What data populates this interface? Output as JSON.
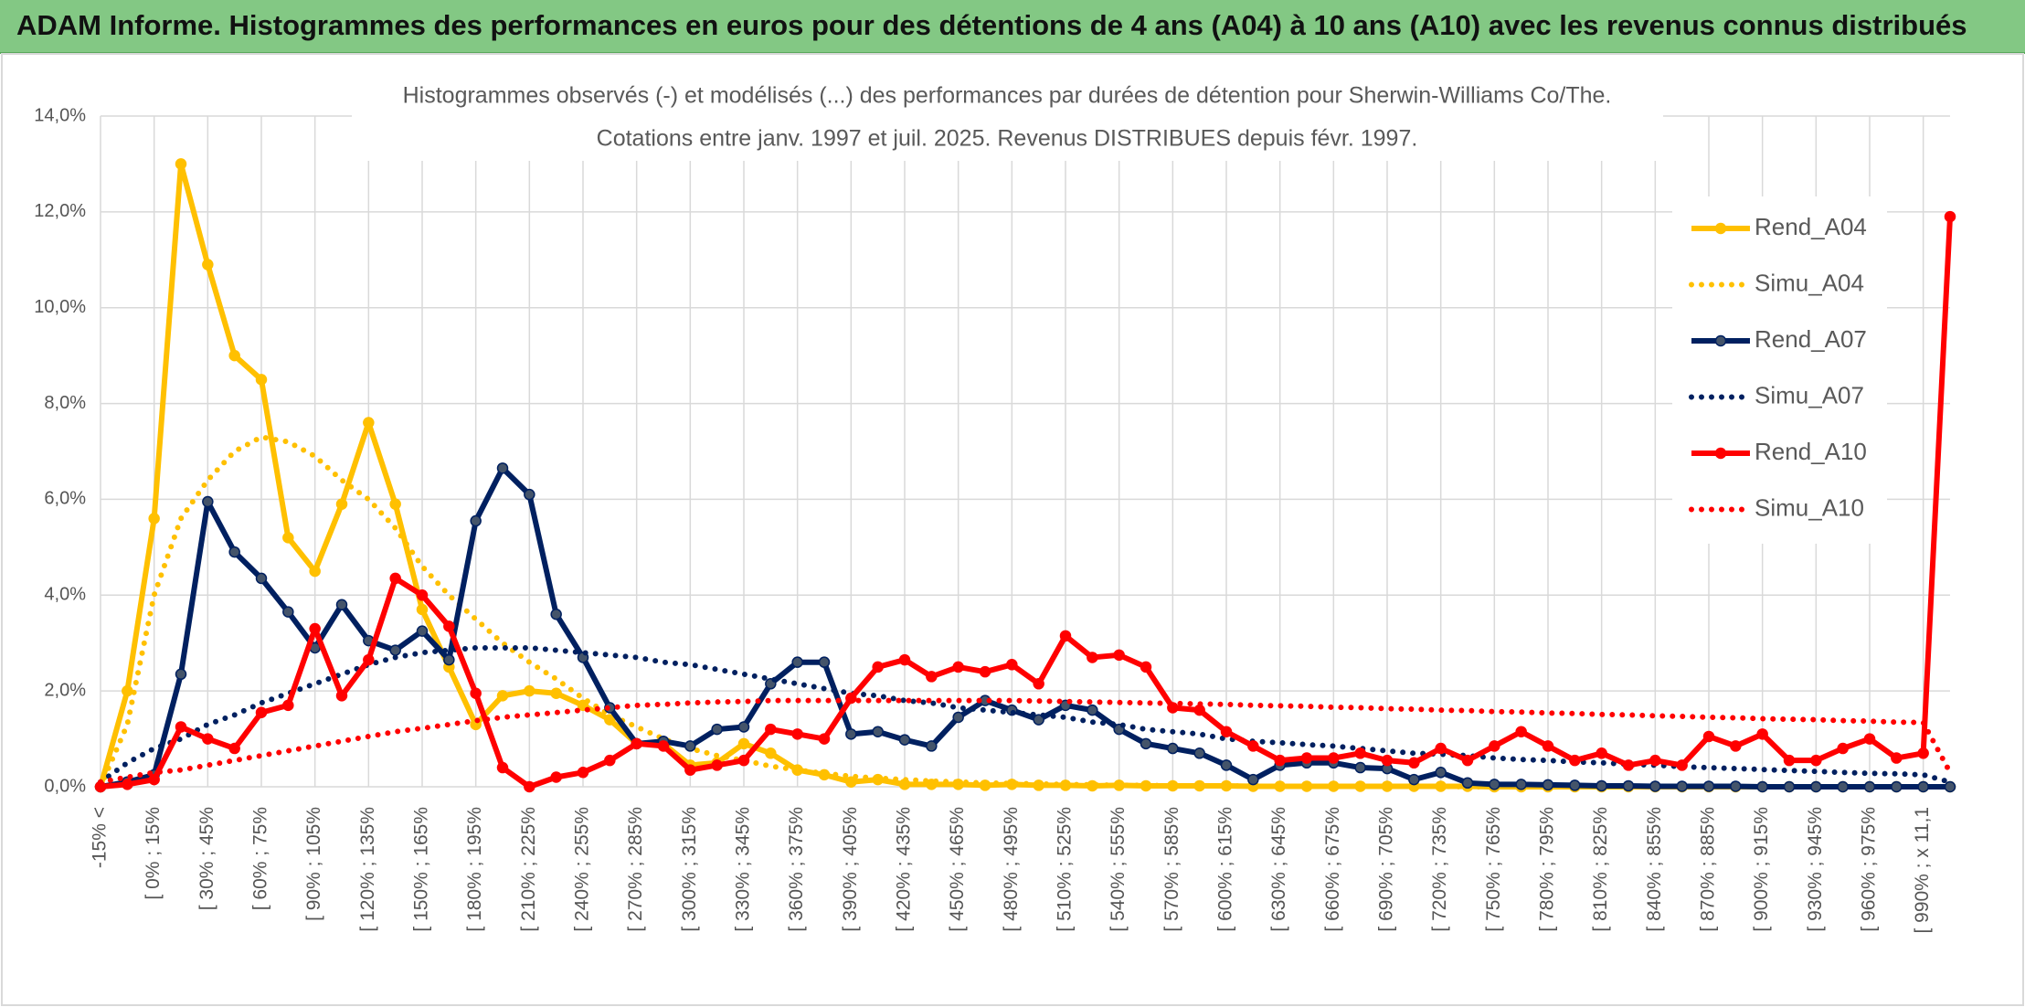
{
  "header": {
    "title": "ADAM Informe. Histogrammes des performances en euros pour des détentions de 4 ans (A04) à 10 ans (A10) avec les revenus connus distribués"
  },
  "chart_data": {
    "type": "line",
    "title": "Histogrammes observés (-) et modélisés (...) des performances par durées de détention pour Sherwin-Williams Co/The.",
    "subtitle": "Cotations entre janv. 1997 et juil. 2025. Revenus DISTRIBUES depuis févr. 1997.",
    "categories": [
      "-15% <",
      null,
      "[ 0% ; 15%",
      null,
      "[ 30% ; 45%",
      null,
      "[ 60% ; 75%",
      null,
      "[ 90% ; 105%",
      null,
      "[ 120% ; 135%",
      null,
      "[ 150% ; 165%",
      null,
      "[ 180% ; 195%",
      null,
      "[ 210% ; 225%",
      null,
      "[ 240% ; 255%",
      null,
      "[ 270% ; 285%",
      null,
      "[ 300% ; 315%",
      null,
      "[ 330% ; 345%",
      null,
      "[ 360% ; 375%",
      null,
      "[ 390% ; 405%",
      null,
      "[ 420% ; 435%",
      null,
      "[ 450% ; 465%",
      null,
      "[ 480% ; 495%",
      null,
      "[ 510% ; 525%",
      null,
      "[ 540% ; 555%",
      null,
      "[ 570% ; 585%",
      null,
      "[ 600% ; 615%",
      null,
      "[ 630% ; 645%",
      null,
      "[ 660% ; 675%",
      null,
      "[ 690% ; 705%",
      null,
      "[ 720% ; 735%",
      null,
      "[ 750% ; 765%",
      null,
      "[ 780% ; 795%",
      null,
      "[ 810% ; 825%",
      null,
      "[ 840% ; 855%",
      null,
      "[ 870% ; 885%",
      null,
      "[ 900% ; 915%",
      null,
      "[ 930% ; 945%",
      null,
      "[ 960% ; 975%",
      null,
      "[ 990% ; x 11,1",
      null
    ],
    "ylim": [
      0,
      14
    ],
    "yticks": [
      {
        "value": 0,
        "label": "0,0%"
      },
      {
        "value": 2,
        "label": "2,0%"
      },
      {
        "value": 4,
        "label": "4,0%"
      },
      {
        "value": 6,
        "label": "6,0%"
      },
      {
        "value": 8,
        "label": "8,0%"
      },
      {
        "value": 10,
        "label": "10,0%"
      },
      {
        "value": 12,
        "label": "12,0%"
      },
      {
        "value": 14,
        "label": "14,0%"
      }
    ],
    "grid": true,
    "legend": "right",
    "series": [
      {
        "name": "Rend_A04",
        "color": "#ffc000",
        "style": "solid",
        "marker_color": "#ffc000",
        "values": [
          0,
          2.0,
          5.6,
          13.0,
          10.9,
          9.0,
          8.5,
          5.2,
          4.5,
          5.9,
          7.6,
          5.9,
          3.7,
          2.5,
          1.3,
          1.9,
          2.0,
          1.95,
          1.7,
          1.4,
          0.9,
          0.9,
          0.45,
          0.5,
          0.9,
          0.7,
          0.35,
          0.25,
          0.1,
          0.15,
          0.05,
          0.05,
          0.05,
          0.03,
          0.05,
          0.03,
          0.03,
          0.02,
          0.03,
          0.02,
          0.02,
          0.02,
          0.02,
          0.01,
          0.01,
          0.01,
          0.01,
          0.01,
          0.01,
          0.01,
          0.01,
          0.01,
          0,
          0,
          0,
          0,
          0,
          0,
          0,
          0,
          0,
          0,
          0,
          0,
          0,
          0,
          0,
          0,
          0,
          0
        ]
      },
      {
        "name": "Simu_A04",
        "color": "#ffc000",
        "style": "dotted",
        "values": [
          0,
          1.3,
          4.0,
          5.6,
          6.4,
          7.0,
          7.3,
          7.2,
          6.9,
          6.4,
          6.0,
          5.4,
          4.6,
          4.0,
          3.5,
          3.0,
          2.6,
          2.25,
          1.85,
          1.5,
          1.25,
          1.0,
          0.8,
          0.65,
          0.55,
          0.43,
          0.35,
          0.28,
          0.22,
          0.18,
          0.15,
          0.12,
          0.1,
          0.08,
          0.07,
          0.06,
          0.05,
          0.04,
          0.03,
          0.03,
          0.02,
          0.02,
          0.02,
          0.01,
          0.01,
          0.01,
          0.01,
          0.01,
          0.01,
          0.01,
          0.01,
          0,
          0,
          0,
          0,
          0,
          0,
          0,
          0,
          0,
          0,
          0,
          0,
          0,
          0,
          0,
          0,
          0,
          0,
          0
        ]
      },
      {
        "name": "Rend_A07",
        "color": "#002060",
        "style": "solid",
        "marker_color": "#44546a",
        "values": [
          0,
          0.1,
          0.25,
          2.35,
          5.95,
          4.9,
          4.35,
          3.65,
          2.9,
          3.8,
          3.05,
          2.85,
          3.25,
          2.65,
          5.55,
          6.65,
          6.1,
          3.6,
          2.7,
          1.65,
          0.9,
          0.95,
          0.85,
          1.2,
          1.25,
          2.15,
          2.6,
          2.6,
          1.1,
          1.15,
          0.98,
          0.85,
          1.45,
          1.8,
          1.6,
          1.4,
          1.7,
          1.6,
          1.2,
          0.9,
          0.8,
          0.7,
          0.45,
          0.15,
          0.45,
          0.5,
          0.5,
          0.4,
          0.38,
          0.15,
          0.3,
          0.08,
          0.05,
          0.05,
          0.04,
          0.03,
          0.02,
          0.02,
          0.01,
          0.01,
          0.01,
          0.01,
          0,
          0,
          0,
          0,
          0,
          0,
          0,
          0
        ]
      },
      {
        "name": "Simu_A07",
        "color": "#002060",
        "style": "dotted",
        "values": [
          0.1,
          0.5,
          0.8,
          1.0,
          1.3,
          1.5,
          1.75,
          1.95,
          2.15,
          2.35,
          2.55,
          2.7,
          2.8,
          2.85,
          2.9,
          2.9,
          2.9,
          2.85,
          2.8,
          2.75,
          2.7,
          2.6,
          2.55,
          2.45,
          2.35,
          2.25,
          2.15,
          2.05,
          1.95,
          1.9,
          1.8,
          1.75,
          1.65,
          1.6,
          1.55,
          1.5,
          1.45,
          1.35,
          1.3,
          1.2,
          1.15,
          1.1,
          1.0,
          0.95,
          0.92,
          0.88,
          0.85,
          0.8,
          0.75,
          0.7,
          0.68,
          0.65,
          0.6,
          0.57,
          0.55,
          0.52,
          0.5,
          0.47,
          0.45,
          0.42,
          0.4,
          0.38,
          0.36,
          0.34,
          0.32,
          0.3,
          0.28,
          0.27,
          0.25,
          0.1
        ]
      },
      {
        "name": "Rend_A10",
        "color": "#ff0000",
        "style": "solid",
        "marker_color": "#ff0000",
        "values": [
          0,
          0.05,
          0.15,
          1.25,
          1.0,
          0.8,
          1.55,
          1.7,
          3.3,
          1.9,
          2.65,
          4.35,
          4.0,
          3.35,
          1.95,
          0.4,
          0,
          0.2,
          0.3,
          0.55,
          0.9,
          0.85,
          0.35,
          0.45,
          0.55,
          1.2,
          1.1,
          1.0,
          1.85,
          2.5,
          2.65,
          2.3,
          2.5,
          2.4,
          2.55,
          2.15,
          3.15,
          2.7,
          2.75,
          2.5,
          1.65,
          1.6,
          1.15,
          0.85,
          0.55,
          0.6,
          0.6,
          0.7,
          0.55,
          0.5,
          0.8,
          0.55,
          0.85,
          1.15,
          0.85,
          0.55,
          0.7,
          0.45,
          0.55,
          0.45,
          1.05,
          0.85,
          1.1,
          0.55,
          0.55,
          0.8,
          1.0,
          0.6,
          0.7,
          11.9
        ]
      },
      {
        "name": "Simu_A10",
        "color": "#ff0000",
        "style": "dotted",
        "values": [
          0.1,
          0.2,
          0.3,
          0.35,
          0.45,
          0.55,
          0.65,
          0.75,
          0.85,
          0.95,
          1.05,
          1.15,
          1.22,
          1.3,
          1.38,
          1.45,
          1.5,
          1.55,
          1.6,
          1.65,
          1.7,
          1.72,
          1.75,
          1.77,
          1.78,
          1.8,
          1.8,
          1.8,
          1.8,
          1.8,
          1.8,
          1.8,
          1.8,
          1.8,
          1.8,
          1.79,
          1.78,
          1.77,
          1.76,
          1.75,
          1.74,
          1.73,
          1.72,
          1.7,
          1.69,
          1.68,
          1.66,
          1.65,
          1.63,
          1.62,
          1.6,
          1.59,
          1.57,
          1.56,
          1.54,
          1.53,
          1.51,
          1.5,
          1.48,
          1.47,
          1.45,
          1.44,
          1.42,
          1.41,
          1.4,
          1.38,
          1.37,
          1.35,
          1.34,
          0.3
        ]
      }
    ]
  }
}
